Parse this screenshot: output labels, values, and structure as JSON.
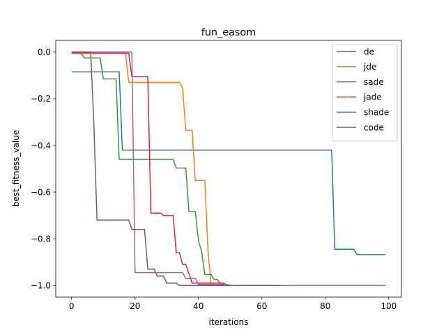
{
  "chart_data": {
    "type": "line",
    "title": "fun_easom",
    "xlabel": "iterations",
    "ylabel": "best_fitness_value",
    "xlim": [
      -5,
      104
    ],
    "ylim": [
      -1.05,
      0.05
    ],
    "xticks": [
      0,
      20,
      40,
      60,
      80,
      100
    ],
    "xtick_labels": [
      "0",
      "20",
      "40",
      "60",
      "80",
      "100"
    ],
    "yticks": [
      0.0,
      -0.2,
      -0.4,
      -0.6,
      -0.8,
      -1.0
    ],
    "ytick_labels": [
      "0.0",
      "−0.2",
      "−0.4",
      "−0.6",
      "−0.8",
      "−1.0"
    ],
    "grid": false,
    "legend_position": "top-right",
    "series": [
      {
        "name": "de",
        "color": "#1f77b4",
        "x": [
          0,
          15,
          16,
          82,
          83,
          89,
          90,
          99
        ],
        "y": [
          -0.085,
          -0.085,
          -0.42,
          -0.42,
          -0.845,
          -0.845,
          -0.868,
          -0.868
        ]
      },
      {
        "name": "jde",
        "color": "#ff7f0e",
        "x": [
          0,
          17,
          18,
          34,
          35,
          36,
          38,
          39,
          42,
          43,
          44,
          99
        ],
        "y": [
          -0.005,
          -0.005,
          -0.13,
          -0.13,
          -0.155,
          -0.335,
          -0.335,
          -0.55,
          -0.55,
          -0.85,
          -1.0,
          -1.0
        ]
      },
      {
        "name": "sade",
        "color": "#2ca02c",
        "x": [
          0,
          3,
          4,
          9,
          10,
          14,
          15,
          32,
          33,
          36,
          37,
          39,
          40,
          41,
          42,
          43,
          44,
          45,
          46,
          47,
          48,
          99
        ],
        "y": [
          -0.005,
          -0.005,
          -0.025,
          -0.025,
          -0.115,
          -0.115,
          -0.46,
          -0.46,
          -0.497,
          -0.497,
          -0.683,
          -0.683,
          -0.808,
          -0.855,
          -0.953,
          -0.953,
          -0.953,
          -0.975,
          -0.975,
          -0.995,
          -1.0,
          -1.0
        ]
      },
      {
        "name": "jade",
        "color": "#d62728",
        "x": [
          0,
          18,
          19,
          24,
          25,
          28,
          29,
          32,
          33,
          34,
          35,
          36,
          38,
          39,
          48,
          49,
          99
        ],
        "y": [
          -0.005,
          -0.005,
          -0.105,
          -0.105,
          -0.69,
          -0.69,
          -0.7,
          -0.7,
          -0.86,
          -0.86,
          -0.91,
          -0.91,
          -0.99,
          -0.99,
          -0.99,
          -1.0,
          -1.0
        ]
      },
      {
        "name": "shade",
        "color": "#9467bd",
        "x": [
          0,
          19,
          20,
          35,
          36,
          39,
          40,
          49,
          50,
          99
        ],
        "y": [
          0.0,
          0.0,
          -0.945,
          -0.945,
          -0.97,
          -0.97,
          -0.995,
          -0.995,
          -1.0,
          -1.0
        ]
      },
      {
        "name": "code",
        "color": "#8c564b",
        "x": [
          0,
          6,
          7,
          8,
          18,
          19,
          23,
          24,
          26,
          27,
          29,
          30,
          33,
          34,
          66
        ],
        "y": [
          0.0,
          0.0,
          -0.3,
          -0.72,
          -0.72,
          -0.76,
          -0.76,
          -0.93,
          -0.93,
          -0.96,
          -0.96,
          -0.99,
          -0.99,
          -1.0,
          -1.0
        ]
      }
    ]
  }
}
